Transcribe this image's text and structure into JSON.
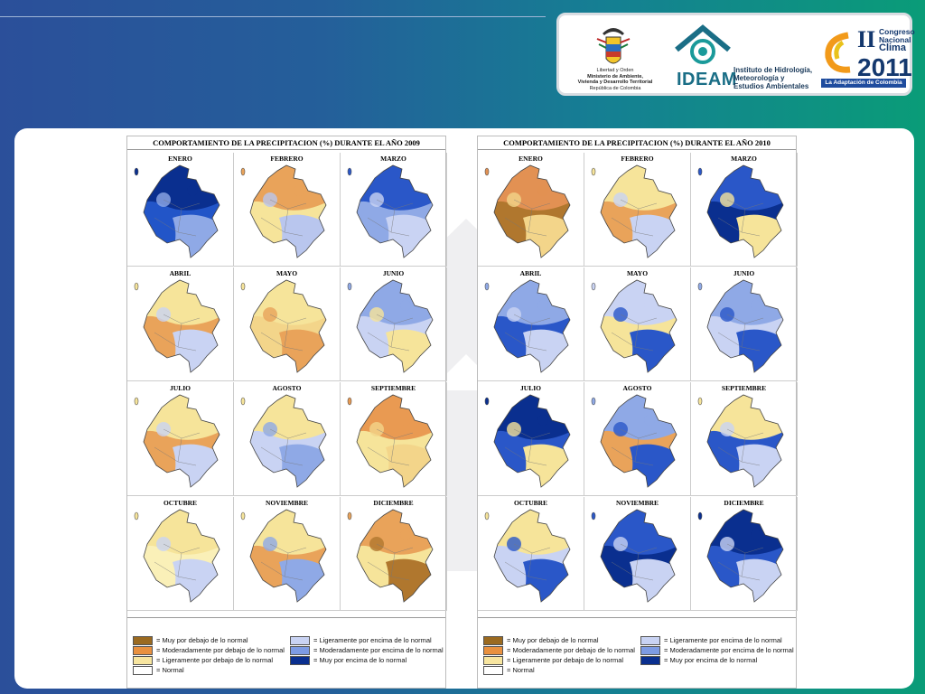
{
  "header": {
    "crest_text": [
      "Libertad y Orden",
      "Ministerio de Ambiente,",
      "Vivienda y Desarrollo Territorial",
      "República de Colombia"
    ],
    "ideam": {
      "name": "IDEAM",
      "subtitle": [
        "Instituto de Hidrología,",
        "Meteorología y",
        "Estudios Ambientales"
      ]
    },
    "congreso": {
      "roman": "II",
      "line1": "Congreso",
      "line2": "Nacional",
      "line3": "Clima",
      "year": "2011",
      "banner": "La Adaptación de Colombia"
    }
  },
  "figures": [
    {
      "title": "COMPORTAMIENTO DE LA PRECIPITACION (%) DURANTE EL AÑO 2009",
      "months": [
        {
          "label": "ENERO",
          "palette": [
            "#0a2f8f",
            "#2255c8",
            "#8fa9e6"
          ]
        },
        {
          "label": "FEBRERO",
          "palette": [
            "#e9a35a",
            "#f6e49a",
            "#b9c6ee"
          ]
        },
        {
          "label": "MARZO",
          "palette": [
            "#2a57c8",
            "#8fa9e6",
            "#c9d3f3"
          ]
        },
        {
          "label": "ABRIL",
          "palette": [
            "#f6e49a",
            "#e9a35a",
            "#c9d3f3"
          ]
        },
        {
          "label": "MAYO",
          "palette": [
            "#f6e49a",
            "#f3d58a",
            "#e9a35a"
          ]
        },
        {
          "label": "JUNIO",
          "palette": [
            "#8fa9e6",
            "#c9d3f3",
            "#f6e49a"
          ]
        },
        {
          "label": "JULIO",
          "palette": [
            "#f6e49a",
            "#e9a35a",
            "#c9d3f3"
          ]
        },
        {
          "label": "AGOSTO",
          "palette": [
            "#f6e49a",
            "#c9d3f3",
            "#8fa9e6"
          ]
        },
        {
          "label": "SEPTIEMBRE",
          "palette": [
            "#e99a52",
            "#f6e49a",
            "#f3d58a"
          ]
        },
        {
          "label": "OCTUBRE",
          "palette": [
            "#f6e49a",
            "#faf0b8",
            "#c9d3f3"
          ]
        },
        {
          "label": "NOVIEMBRE",
          "palette": [
            "#f6e49a",
            "#e9a35a",
            "#8fa9e6"
          ]
        },
        {
          "label": "DICIEMBRE",
          "palette": [
            "#e9a35a",
            "#f6e49a",
            "#b0772e"
          ]
        }
      ]
    },
    {
      "title": "COMPORTAMIENTO DE LA PRECIPITACION (%) DURANTE EL AÑO 2010",
      "months": [
        {
          "label": "ENERO",
          "palette": [
            "#e29153",
            "#b0772e",
            "#f3d58a"
          ]
        },
        {
          "label": "FEBRERO",
          "palette": [
            "#f6e49a",
            "#e9a35a",
            "#c9d3f3"
          ]
        },
        {
          "label": "MARZO",
          "palette": [
            "#2a57c8",
            "#0a2f8f",
            "#f6e49a"
          ]
        },
        {
          "label": "ABRIL",
          "palette": [
            "#8fa9e6",
            "#2a57c8",
            "#c9d3f3"
          ]
        },
        {
          "label": "MAYO",
          "palette": [
            "#c9d3f3",
            "#f6e49a",
            "#2a57c8"
          ]
        },
        {
          "label": "JUNIO",
          "palette": [
            "#8fa9e6",
            "#c9d3f3",
            "#2a57c8"
          ]
        },
        {
          "label": "JULIO",
          "palette": [
            "#0a2f8f",
            "#2a57c8",
            "#f6e49a"
          ]
        },
        {
          "label": "AGOSTO",
          "palette": [
            "#8fa9e6",
            "#e9a35a",
            "#2a57c8"
          ]
        },
        {
          "label": "SEPTIEMBRE",
          "palette": [
            "#f6e49a",
            "#2a57c8",
            "#c9d3f3"
          ]
        },
        {
          "label": "OCTUBRE",
          "palette": [
            "#f6e49a",
            "#c9d3f3",
            "#2a57c8"
          ]
        },
        {
          "label": "NOVIEMBRE",
          "palette": [
            "#2a57c8",
            "#0a2f8f",
            "#c9d3f3"
          ]
        },
        {
          "label": "DICIEMBRE",
          "palette": [
            "#0a2f8f",
            "#2a57c8",
            "#c9d3f3"
          ]
        }
      ]
    }
  ],
  "legend": [
    {
      "text": "Muy por debajo de lo normal",
      "color": "#9b6a20"
    },
    {
      "text": "Moderadamente por debajo de lo normal",
      "color": "#e9913f"
    },
    {
      "text": "Ligeramente por debajo de lo normal",
      "color": "#f8e6a0"
    },
    {
      "text": "Normal",
      "color": "#ffffff"
    },
    {
      "text": "Ligeramente por encima de lo normal",
      "color": "#c9d3f3"
    },
    {
      "text": "Moderadamente por encima de lo normal",
      "color": "#7d9be3"
    },
    {
      "text": "Muy por encima de lo normal",
      "color": "#0a2f8f"
    }
  ]
}
